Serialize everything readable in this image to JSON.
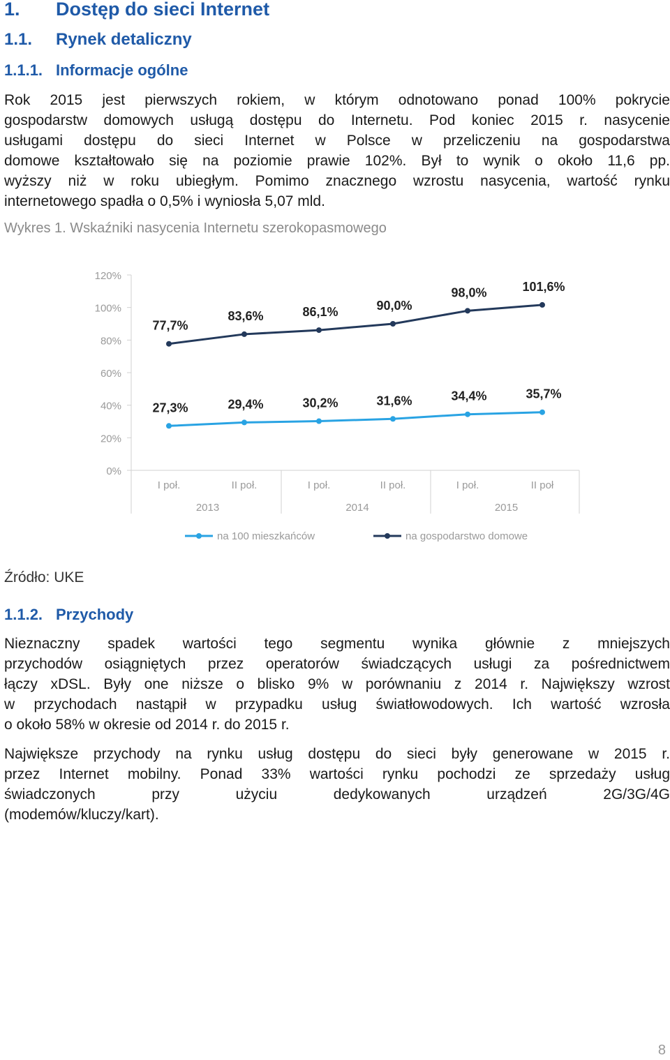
{
  "headings": {
    "h1": {
      "num": "1.",
      "text": "Dostęp do sieci Internet"
    },
    "h2": {
      "num": "1.1.",
      "text": "Rynek detaliczny"
    },
    "h3": {
      "num": "1.1.1.",
      "text": "Informacje ogólne"
    },
    "h3b": {
      "num": "1.1.2.",
      "text": "Przychody"
    }
  },
  "paragraph1": [
    "Rok 2015 jest pierwszych rokiem, w którym odnotowano ponad 100% pokrycie",
    "gospodarstw domowych usługą dostępu do Internetu. Pod koniec 2015 r. nasycenie",
    "usługami dostępu do sieci Internet w Polsce w przeliczeniu na gospodarstwa",
    "domowe kształtowało się na poziomie prawie 102%. Był to wynik o około 11,6 pp.",
    "wyższy niż w roku ubiegłym. Pomimo znacznego wzrostu nasycenia, wartość rynku",
    "internetowego spadła o 0,5% i wyniosła 5,07 mld."
  ],
  "caption": "Wykres 1. Wskaźniki nasycenia  Internetu szerokopasmowego",
  "chart_data": {
    "type": "line",
    "ylim": [
      0,
      120
    ],
    "yticks": [
      "0%",
      "20%",
      "40%",
      "60%",
      "80%",
      "100%",
      "120%"
    ],
    "categories": [
      "I poł.",
      "II poł.",
      "I poł.",
      "II poł.",
      "I poł.",
      "II poł"
    ],
    "groups": [
      "2013",
      "2014",
      "2015"
    ],
    "series": [
      {
        "name": "na 100 mieszkańców",
        "color": "#29a3e3",
        "values": [
          27.3,
          29.4,
          30.2,
          31.6,
          34.4,
          35.7
        ],
        "labels": [
          "27,3%",
          "29,4%",
          "30,2%",
          "31,6%",
          "34,4%",
          "35,7%"
        ]
      },
      {
        "name": "na gospodarstwo domowe",
        "color": "#23395b",
        "values": [
          77.7,
          83.6,
          86.1,
          90.0,
          98.0,
          101.6
        ],
        "labels": [
          "77,7%",
          "83,6%",
          "86,1%",
          "90,0%",
          "98,0%",
          "101,6%"
        ]
      }
    ],
    "legend": "bottom",
    "grid": false
  },
  "source": "Źródło: UKE",
  "paragraph2": [
    "Nieznaczny spadek wartości tego segmentu wynika głównie z mniejszych",
    "przychodów osiągniętych przez operatorów świadczących usługi za pośrednictwem",
    "łączy xDSL. Były one niższe o blisko 9% w porównaniu z 2014 r. Największy wzrost",
    "w przychodach nastąpił w przypadku usług światłowodowych. Ich wartość wzrosła",
    "o około  58% w okresie od 2014 r. do 2015 r."
  ],
  "paragraph3": [
    "Największe przychody na rynku usług dostępu do sieci były generowane w 2015 r.",
    "przez Internet mobilny. Ponad 33% wartości rynku pochodzi ze sprzedaży usług",
    "świadczonych przy użyciu dedykowanych urządzeń 2G/3G/4G",
    "(modemów/kluczy/kart)."
  ],
  "page_number": "8"
}
